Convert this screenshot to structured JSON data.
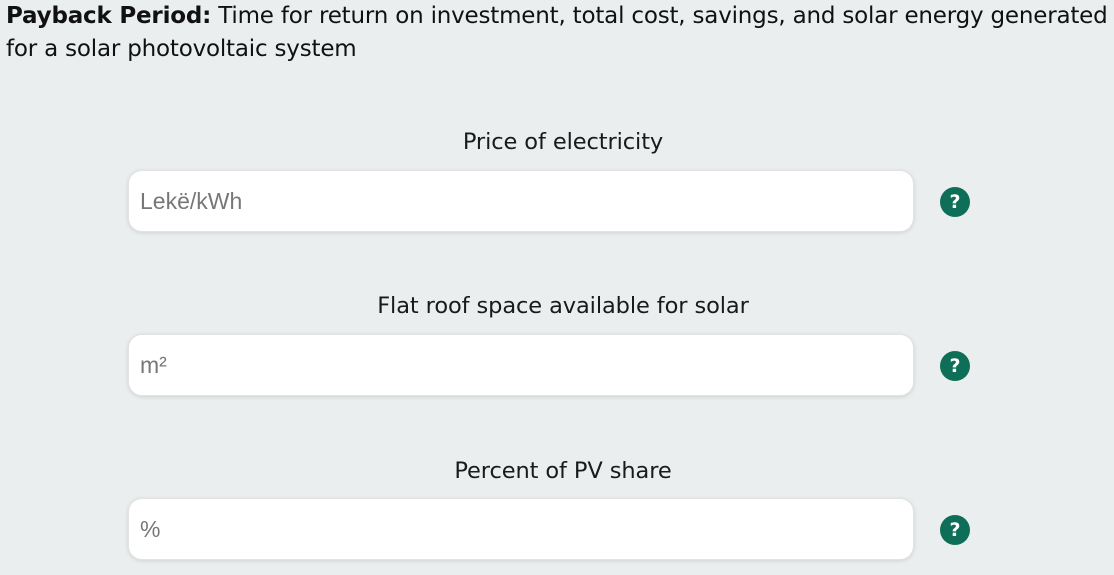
{
  "intro": {
    "title": "Payback Period:",
    "description": " Time for return on investment, total cost, savings, and solar energy generated for a solar photovoltaic system"
  },
  "fields": [
    {
      "label": "Price of electricity",
      "placeholder": "Lekë/kWh",
      "value": "",
      "help_icon": "question-mark",
      "help_glyph": "?"
    },
    {
      "label": "Flat roof space available for solar",
      "placeholder": "m²",
      "value": "",
      "help_icon": "question-mark",
      "help_glyph": "?"
    },
    {
      "label": "Percent of PV share",
      "placeholder": "%",
      "value": "",
      "help_icon": "question-mark",
      "help_glyph": "?"
    }
  ],
  "colors": {
    "page_background": "#ebeeef",
    "help_icon": "#0e6e57",
    "input_background": "#ffffff"
  }
}
